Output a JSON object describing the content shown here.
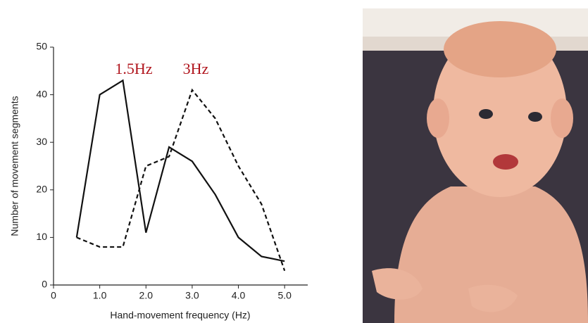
{
  "chart_data": {
    "type": "line",
    "x_label": "Hand-movement frequency (Hz)",
    "y_label": "Number of movement segments",
    "x": [
      0.5,
      1,
      1.5,
      2,
      2.5,
      3,
      3.5,
      4,
      4.5,
      5
    ],
    "series": [
      {
        "color": "#111111",
        "linestyle": "solid",
        "values": [
          10,
          40,
          43,
          11,
          29,
          26,
          19,
          10,
          6,
          5
        ]
      },
      {
        "color": "#111111",
        "linestyle": "dashed",
        "values": [
          10,
          8,
          8,
          25,
          27,
          41,
          35,
          25,
          17,
          3
        ]
      }
    ],
    "xlim": [
      0,
      5.5
    ],
    "xticks": [
      0,
      {
        "value": 1,
        "label": "1.0"
      },
      {
        "value": 2,
        "label": "2.0"
      },
      {
        "value": 3,
        "label": "3.0"
      },
      {
        "value": 4,
        "label": "4.0"
      },
      {
        "value": 5,
        "label": "5.0"
      }
    ],
    "ylim": [
      0,
      50
    ],
    "yticks": [
      0,
      10,
      20,
      30,
      40,
      50
    ],
    "annotations": [
      "1.5Hz",
      "3Hz"
    ],
    "annotation_color": "#b0141c",
    "grid": false
  }
}
